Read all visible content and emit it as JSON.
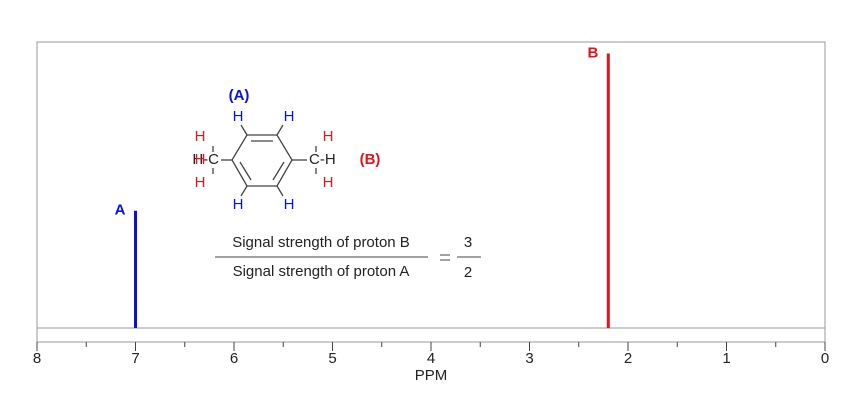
{
  "chart_data": {
    "type": "spectrum",
    "xlabel": "PPM",
    "xlim": [
      8,
      0
    ],
    "xticks": [
      8,
      7,
      6,
      5,
      4,
      3,
      2,
      1,
      0
    ],
    "xticks_minor": [
      7.5,
      6.5,
      5.5,
      4.5,
      3.5,
      2.5,
      1.5,
      0.5
    ],
    "ylim": [
      0,
      100
    ],
    "series": [
      {
        "name": "A",
        "color": "#0a12d8",
        "x": [
          7.0
        ],
        "values": [
          41
        ]
      },
      {
        "name": "B",
        "color": "#e0141c",
        "x": [
          2.2
        ],
        "values": [
          96
        ]
      }
    ],
    "ratio": {
      "numerator_label": "Signal strength of proton B",
      "denominator_label": "Signal strength of proton A",
      "numerator": 3,
      "denominator": 2
    },
    "molecule": {
      "labels": [
        "(A)",
        "H",
        "H",
        "H",
        "H",
        "H",
        "H-C",
        "H",
        "H",
        "C-H",
        "H",
        "H",
        "(B)"
      ]
    }
  }
}
